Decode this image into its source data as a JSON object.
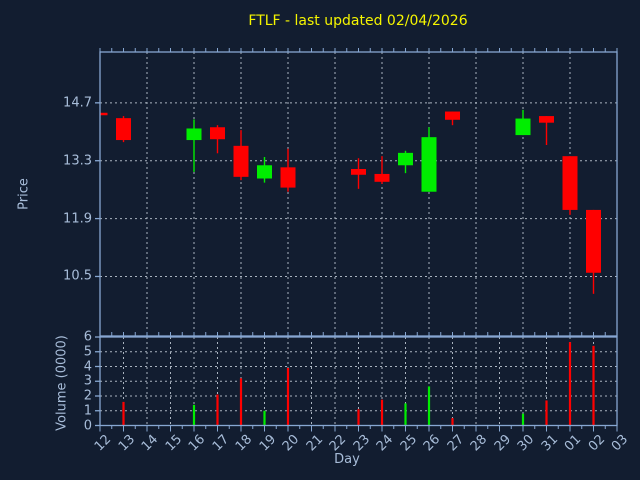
{
  "title": "FTLF - last updated 02/04/2026",
  "colors": {
    "background": "#121d30",
    "axis_line": "#87a7d2",
    "tick_label": "#a8bdd9",
    "axis_title": "#a8bdd9",
    "grid": "#aab4c0",
    "title": "#f5f500",
    "up": "#00ee00",
    "down": "#ff0000"
  },
  "price_axis": {
    "label": "Price",
    "ticks": [
      "14.7",
      "13.3",
      "11.9",
      "10.5"
    ],
    "tick_values": [
      14.7,
      13.3,
      11.9,
      10.5
    ]
  },
  "volume_axis": {
    "label": "Volume (0000)",
    "ticks": [
      "6",
      "5",
      "4",
      "3",
      "2",
      "1",
      "0"
    ],
    "tick_values": [
      6,
      5,
      4,
      3,
      2,
      1,
      0
    ]
  },
  "x_axis": {
    "label": "Day",
    "tick_labels": [
      "12",
      "13",
      "14",
      "15",
      "16",
      "17",
      "18",
      "19",
      "20",
      "21",
      "22",
      "23",
      "24",
      "25",
      "26",
      "27",
      "28",
      "29",
      "30",
      "31",
      "01",
      "02",
      "03"
    ]
  },
  "chart_data": {
    "type": "candlestick",
    "title": "FTLF - last updated 02/04/2026",
    "xlabel": "Day",
    "ylabel_price": "Price",
    "ylabel_volume": "Volume (0000)",
    "price_ylim": [
      9.06,
      15.93
    ],
    "volume_ylim": [
      0,
      6
    ],
    "grid": true,
    "x_categories": [
      "12",
      "13",
      "14",
      "15",
      "16",
      "17",
      "18",
      "19",
      "20",
      "21",
      "22",
      "23",
      "24",
      "25",
      "26",
      "27",
      "28",
      "29",
      "30",
      "31",
      "01",
      "02",
      "03"
    ],
    "candles": [
      {
        "day": "12",
        "open": 14.46,
        "high": 14.46,
        "low": 14.4,
        "close": 14.4,
        "volume": null
      },
      {
        "day": "13",
        "open": 14.33,
        "high": 14.38,
        "low": 13.75,
        "close": 13.8,
        "volume": 1.6
      },
      {
        "day": "16",
        "open": 13.8,
        "high": 14.3,
        "low": 13.03,
        "close": 14.08,
        "volume": 1.4
      },
      {
        "day": "17",
        "open": 14.11,
        "high": 14.16,
        "low": 13.48,
        "close": 13.82,
        "volume": 2.1
      },
      {
        "day": "18",
        "open": 13.66,
        "high": 14.04,
        "low": 12.83,
        "close": 12.91,
        "volume": 3.2
      },
      {
        "day": "19",
        "open": 12.87,
        "high": 13.39,
        "low": 12.77,
        "close": 13.19,
        "volume": 1.0
      },
      {
        "day": "20",
        "open": 13.14,
        "high": 13.59,
        "low": 12.55,
        "close": 12.65,
        "volume": 3.9
      },
      {
        "day": "23",
        "open": 13.1,
        "high": 13.36,
        "low": 12.62,
        "close": 12.96,
        "volume": 1.1
      },
      {
        "day": "24",
        "open": 12.98,
        "high": 13.41,
        "low": 12.74,
        "close": 12.79,
        "volume": 1.75
      },
      {
        "day": "25",
        "open": 13.19,
        "high": 13.54,
        "low": 13.0,
        "close": 13.49,
        "volume": 1.5
      },
      {
        "day": "26",
        "open": 12.55,
        "high": 14.11,
        "low": 12.55,
        "close": 13.87,
        "volume": 2.65
      },
      {
        "day": "27",
        "open": 14.49,
        "high": 14.49,
        "low": 14.16,
        "close": 14.29,
        "volume": 0.5
      },
      {
        "day": "30",
        "open": 13.92,
        "high": 14.53,
        "low": 13.92,
        "close": 14.32,
        "volume": 0.8
      },
      {
        "day": "31",
        "open": 14.38,
        "high": 14.38,
        "low": 13.68,
        "close": 14.22,
        "volume": 1.7
      },
      {
        "day": "01",
        "open": 13.41,
        "high": 13.41,
        "low": 11.99,
        "close": 12.11,
        "volume": 5.65
      },
      {
        "day": "02",
        "open": 12.11,
        "high": 12.11,
        "low": 10.08,
        "close": 10.59,
        "volume": 5.4
      }
    ]
  }
}
